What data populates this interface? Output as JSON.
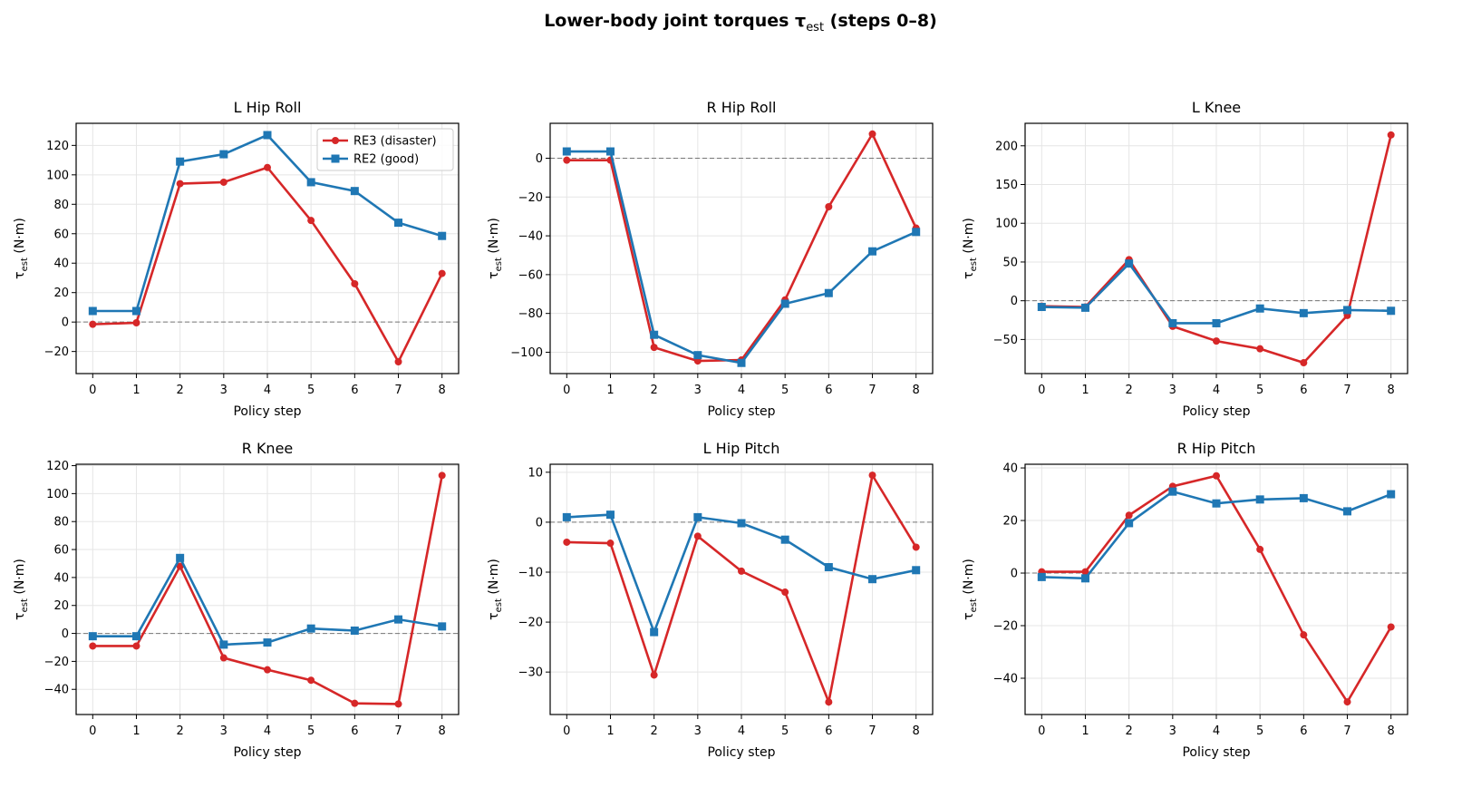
{
  "figure": {
    "title_main": "Lower-body joint torques τ",
    "title_sub": "est",
    "title_end": " (steps 0–8)"
  },
  "colors": {
    "RE3": "#d62728",
    "RE2": "#1f77b4"
  },
  "legend": {
    "placement": "upper right (first panel)",
    "entries": [
      "RE3 (disaster)",
      "RE2 (good)"
    ]
  },
  "chart_data": [
    {
      "type": "line",
      "title": "L Hip Roll",
      "xlabel": "Policy step",
      "ylabel_main": "τ",
      "ylabel_sub": "est",
      "ylabel_end": " (N·m)",
      "x": [
        0,
        1,
        2,
        3,
        4,
        5,
        6,
        7,
        8
      ],
      "ylim": [
        -35,
        135
      ],
      "yticks": [
        -20,
        0,
        20,
        40,
        60,
        80,
        100,
        120
      ],
      "grid": true,
      "zero_line": true,
      "series": [
        {
          "name": "RE3 (disaster)",
          "marker": "circle",
          "values": [
            -1.5,
            -0.5,
            94,
            95,
            105,
            69,
            26,
            -27,
            33
          ]
        },
        {
          "name": "RE2 (good)",
          "marker": "square",
          "values": [
            7.5,
            7.5,
            109,
            114,
            127,
            95,
            89,
            67.5,
            58.5
          ]
        }
      ]
    },
    {
      "type": "line",
      "title": "R Hip Roll",
      "xlabel": "Policy step",
      "ylabel_main": "τ",
      "ylabel_sub": "est",
      "ylabel_end": " (N·m)",
      "x": [
        0,
        1,
        2,
        3,
        4,
        5,
        6,
        7,
        8
      ],
      "ylim": [
        -111,
        18
      ],
      "yticks": [
        -100,
        -80,
        -60,
        -40,
        -20,
        0
      ],
      "grid": true,
      "zero_line": true,
      "series": [
        {
          "name": "RE3 (disaster)",
          "marker": "circle",
          "values": [
            -1,
            -1,
            -97.5,
            -104.5,
            -104,
            -73,
            -25,
            12.5,
            -36
          ]
        },
        {
          "name": "RE2 (good)",
          "marker": "square",
          "values": [
            3.5,
            3.5,
            -91,
            -101.5,
            -105.5,
            -75,
            -69.5,
            -48,
            -38
          ]
        }
      ]
    },
    {
      "type": "line",
      "title": "L Knee",
      "xlabel": "Policy step",
      "ylabel_main": "τ",
      "ylabel_sub": "est",
      "ylabel_end": " (N·m)",
      "x": [
        0,
        1,
        2,
        3,
        4,
        5,
        6,
        7,
        8
      ],
      "ylim": [
        -94,
        229
      ],
      "yticks": [
        -50,
        0,
        50,
        100,
        150,
        200
      ],
      "grid": true,
      "zero_line": true,
      "series": [
        {
          "name": "RE3 (disaster)",
          "marker": "circle",
          "values": [
            -7,
            -8,
            53,
            -33,
            -52,
            -62,
            -80,
            -19,
            214
          ]
        },
        {
          "name": "RE2 (good)",
          "marker": "square",
          "values": [
            -8,
            -9,
            48,
            -29,
            -29,
            -10,
            -16,
            -12,
            -13
          ]
        }
      ]
    },
    {
      "type": "line",
      "title": "R Knee",
      "xlabel": "Policy step",
      "ylabel_main": "τ",
      "ylabel_sub": "est",
      "ylabel_end": " (N·m)",
      "x": [
        0,
        1,
        2,
        3,
        4,
        5,
        6,
        7,
        8
      ],
      "ylim": [
        -58,
        121
      ],
      "yticks": [
        -40,
        -20,
        0,
        20,
        40,
        60,
        80,
        100,
        120
      ],
      "grid": true,
      "zero_line": true,
      "series": [
        {
          "name": "RE3 (disaster)",
          "marker": "circle",
          "values": [
            -9,
            -9,
            48,
            -17.5,
            -26,
            -33.5,
            -50,
            -50.5,
            113
          ]
        },
        {
          "name": "RE2 (good)",
          "marker": "square",
          "values": [
            -2,
            -2,
            54,
            -8,
            -6.5,
            3.5,
            2,
            10,
            5
          ]
        }
      ]
    },
    {
      "type": "line",
      "title": "L Hip Pitch",
      "xlabel": "Policy step",
      "ylabel_main": "τ",
      "ylabel_sub": "est",
      "ylabel_end": " (N·m)",
      "x": [
        0,
        1,
        2,
        3,
        4,
        5,
        6,
        7,
        8
      ],
      "ylim": [
        -38.5,
        11.6
      ],
      "yticks": [
        -30,
        -20,
        -10,
        0,
        10
      ],
      "grid": true,
      "zero_line": true,
      "series": [
        {
          "name": "RE3 (disaster)",
          "marker": "circle",
          "values": [
            -4,
            -4.2,
            -30.6,
            -2.8,
            -9.8,
            -14,
            -36,
            9.4,
            -5
          ]
        },
        {
          "name": "RE2 (good)",
          "marker": "square",
          "values": [
            1,
            1.5,
            -22,
            1,
            -0.2,
            -3.5,
            -9,
            -11.4,
            -9.6
          ]
        }
      ]
    },
    {
      "type": "line",
      "title": "R Hip Pitch",
      "xlabel": "Policy step",
      "ylabel_main": "τ",
      "ylabel_sub": "est",
      "ylabel_end": " (N·m)",
      "x": [
        0,
        1,
        2,
        3,
        4,
        5,
        6,
        7,
        8
      ],
      "ylim": [
        -53.8,
        41.4
      ],
      "yticks": [
        -40,
        -20,
        0,
        20,
        40
      ],
      "grid": true,
      "zero_line": true,
      "series": [
        {
          "name": "RE3 (disaster)",
          "marker": "circle",
          "values": [
            0.5,
            0.5,
            22,
            33,
            37,
            9,
            -23.5,
            -49,
            -20.5
          ]
        },
        {
          "name": "RE2 (good)",
          "marker": "square",
          "values": [
            -1.5,
            -2,
            19,
            31,
            26.5,
            28,
            28.5,
            23.5,
            30
          ]
        }
      ]
    }
  ]
}
